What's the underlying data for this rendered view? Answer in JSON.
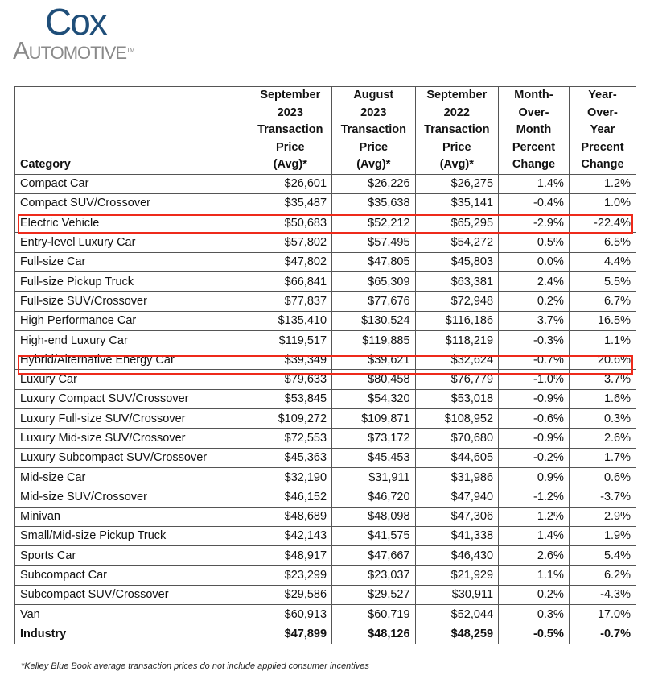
{
  "logo": {
    "line1": "Cox",
    "line2": "Automotive",
    "tm": "TM",
    "colors": {
      "cox": "#1f4e79",
      "automotive": "#8a8a8a"
    }
  },
  "table": {
    "headers": [
      "Category",
      "September 2023 Transaction Price (Avg)*",
      "August 2023 Transaction Price (Avg)*",
      "September 2022 Transaction Price (Avg)*",
      "Month-Over-Month Percent Change",
      "Year-Over-Year Precent Change"
    ],
    "rows": [
      [
        "Compact Car",
        "$26,601",
        "$26,226",
        "$26,275",
        "1.4%",
        "1.2%"
      ],
      [
        "Compact SUV/Crossover",
        "$35,487",
        "$35,638",
        "$35,141",
        "-0.4%",
        "1.0%"
      ],
      [
        "Electric Vehicle",
        "$50,683",
        "$52,212",
        "$65,295",
        "-2.9%",
        "-22.4%"
      ],
      [
        "Entry-level Luxury Car",
        "$57,802",
        "$57,495",
        "$54,272",
        "0.5%",
        "6.5%"
      ],
      [
        "Full-size Car",
        "$47,802",
        "$47,805",
        "$45,803",
        "0.0%",
        "4.4%"
      ],
      [
        "Full-size Pickup Truck",
        "$66,841",
        "$65,309",
        "$63,381",
        "2.4%",
        "5.5%"
      ],
      [
        "Full-size SUV/Crossover",
        "$77,837",
        "$77,676",
        "$72,948",
        "0.2%",
        "6.7%"
      ],
      [
        "High Performance Car",
        "$135,410",
        "$130,524",
        "$116,186",
        "3.7%",
        "16.5%"
      ],
      [
        "High-end Luxury Car",
        "$119,517",
        "$119,885",
        "$118,219",
        "-0.3%",
        "1.1%"
      ],
      [
        "Hybrid/Alternative Energy Car",
        "$39,349",
        "$39,621",
        "$32,624",
        "-0.7%",
        "20.6%"
      ],
      [
        "Luxury Car",
        "$79,633",
        "$80,458",
        "$76,779",
        "-1.0%",
        "3.7%"
      ],
      [
        "Luxury Compact SUV/Crossover",
        "$53,845",
        "$54,320",
        "$53,018",
        "-0.9%",
        "1.6%"
      ],
      [
        "Luxury Full-size SUV/Crossover",
        "$109,272",
        "$109,871",
        "$108,952",
        "-0.6%",
        "0.3%"
      ],
      [
        "Luxury Mid-size SUV/Crossover",
        "$72,553",
        "$73,172",
        "$70,680",
        "-0.9%",
        "2.6%"
      ],
      [
        "Luxury Subcompact SUV/Crossover",
        "$45,363",
        "$45,453",
        "$44,605",
        "-0.2%",
        "1.7%"
      ],
      [
        "Mid-size Car",
        "$32,190",
        "$31,911",
        "$31,986",
        "0.9%",
        "0.6%"
      ],
      [
        "Mid-size SUV/Crossover",
        "$46,152",
        "$46,720",
        "$47,940",
        "-1.2%",
        "-3.7%"
      ],
      [
        "Minivan",
        "$48,689",
        "$48,098",
        "$47,306",
        "1.2%",
        "2.9%"
      ],
      [
        "Small/Mid-size Pickup Truck",
        "$42,143",
        "$41,575",
        "$41,338",
        "1.4%",
        "1.9%"
      ],
      [
        "Sports Car",
        "$48,917",
        "$47,667",
        "$46,430",
        "2.6%",
        "5.4%"
      ],
      [
        "Subcompact Car",
        "$23,299",
        "$23,037",
        "$21,929",
        "1.1%",
        "6.2%"
      ],
      [
        "Subcompact SUV/Crossover",
        "$29,586",
        "$29,527",
        "$30,911",
        "0.2%",
        "-4.3%"
      ],
      [
        "Van",
        "$60,913",
        "$60,719",
        "$52,044",
        "0.3%",
        "17.0%"
      ],
      [
        "Industry",
        "$47,899",
        "$48,126",
        "$48,259",
        "-0.5%",
        "-0.7%"
      ]
    ],
    "highlighted_rows": [
      "Electric Vehicle",
      "Hybrid/Alternative Energy Car"
    ],
    "bold_rows": [
      "Industry"
    ],
    "highlight_color": "#ee2a1b"
  },
  "footnote": "*Kelley Blue Book average transaction prices do not include applied consumer incentives"
}
